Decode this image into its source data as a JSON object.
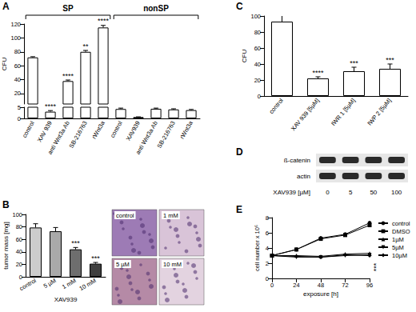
{
  "chart_data": [
    {
      "panel": "A",
      "type": "bar",
      "ylabel": "CFU",
      "ylim": [
        0,
        120
      ],
      "yticks": [
        0,
        5,
        20,
        40,
        60,
        80,
        100,
        120
      ],
      "color": "#ffffff",
      "grid": false,
      "groups": [
        {
          "name": "SP",
          "categories": [
            "control",
            "XAV 939",
            "anti Wnt3a Ab",
            "SB-216763",
            "rWnt3a"
          ],
          "values": [
            72,
            3,
            38,
            80,
            115
          ],
          "errors": [
            1,
            0.5,
            1.5,
            2,
            3
          ],
          "significance": [
            null,
            "****",
            "****",
            "**",
            "****"
          ]
        },
        {
          "name": "nonSP",
          "categories": [
            "control",
            "XAV939",
            "anti Wnt3a Ab",
            "SB-216763",
            "rWnt3a"
          ],
          "values": [
            4.2,
            0.6,
            4.3,
            4.0,
            3.7
          ],
          "errors": [
            0.4,
            0.1,
            0.3,
            0.3,
            0.3
          ],
          "significance": [
            null,
            null,
            null,
            null,
            null
          ]
        }
      ]
    },
    {
      "panel": "B",
      "type": "bar",
      "ylabel": "tumor mass [mg]",
      "xlabel": "XAV939",
      "ylim": [
        0,
        100
      ],
      "yticks": [
        0,
        20,
        40,
        60,
        80,
        100
      ],
      "grid": false,
      "categories": [
        "control",
        "5 µM",
        "1 mM",
        "10 mM"
      ],
      "values": [
        79,
        73,
        44,
        21
      ],
      "errors": [
        6,
        6,
        3,
        2
      ],
      "significance": [
        null,
        null,
        "***",
        "***"
      ],
      "colors": [
        "#cccccc",
        "#a9a9a9",
        "#6e6e6e",
        "#3f3f3f"
      ]
    },
    {
      "panel": "C",
      "type": "bar",
      "ylabel": "CFU",
      "ylim": [
        0,
        100
      ],
      "yticks": [
        0,
        20,
        40,
        60,
        80,
        100
      ],
      "color": "#ffffff",
      "grid": false,
      "categories": [
        "control",
        "XAV 939 [5µM]",
        "IWR 1 [5µM]",
        "IWP 2 [5µM]"
      ],
      "values": [
        93,
        22,
        31,
        34
      ],
      "errors": [
        8,
        2,
        5,
        6
      ],
      "significance": [
        null,
        "****",
        "***",
        "***"
      ]
    },
    {
      "panel": "E",
      "type": "line",
      "xlabel": "exposure [h]",
      "ylabel": "cell number x 10⁶",
      "xlim": [
        0,
        96
      ],
      "xticks": [
        0,
        24,
        48,
        72,
        96
      ],
      "ylim": [
        0,
        8
      ],
      "yticks": [
        0,
        2,
        4,
        6,
        8
      ],
      "grid": false,
      "legend": "right",
      "significance": "***",
      "x": [
        0,
        24,
        48,
        72,
        96
      ],
      "series": [
        {
          "name": "control",
          "color": "#000000",
          "marker": "circle",
          "values": [
            3.0,
            3.8,
            5.3,
            5.8,
            7.3
          ]
        },
        {
          "name": "DMSO",
          "color": "#000000",
          "marker": "square",
          "values": [
            3.0,
            3.8,
            5.2,
            5.7,
            7.0
          ]
        },
        {
          "name": "1µM",
          "color": "#000000",
          "marker": "triangle",
          "values": [
            3.0,
            3.0,
            2.9,
            3.2,
            3.3
          ]
        },
        {
          "name": "5µM",
          "color": "#000000",
          "marker": "triangle_down",
          "values": [
            3.0,
            2.8,
            2.8,
            3.0,
            3.1
          ]
        },
        {
          "name": "10µM",
          "color": "#000000",
          "marker": "diamond",
          "values": [
            3.0,
            2.9,
            2.8,
            3.1,
            3.0
          ]
        }
      ]
    }
  ],
  "histology": {
    "panel": "B",
    "labels": [
      "control",
      "1 mM",
      "5 µM",
      "10 mM"
    ]
  },
  "blot": {
    "panel": "D",
    "rows": [
      "ß-catenin",
      "actin"
    ],
    "lanes": [
      "0",
      "5",
      "50",
      "100"
    ],
    "lane_title": "XAV939 [µM]"
  }
}
